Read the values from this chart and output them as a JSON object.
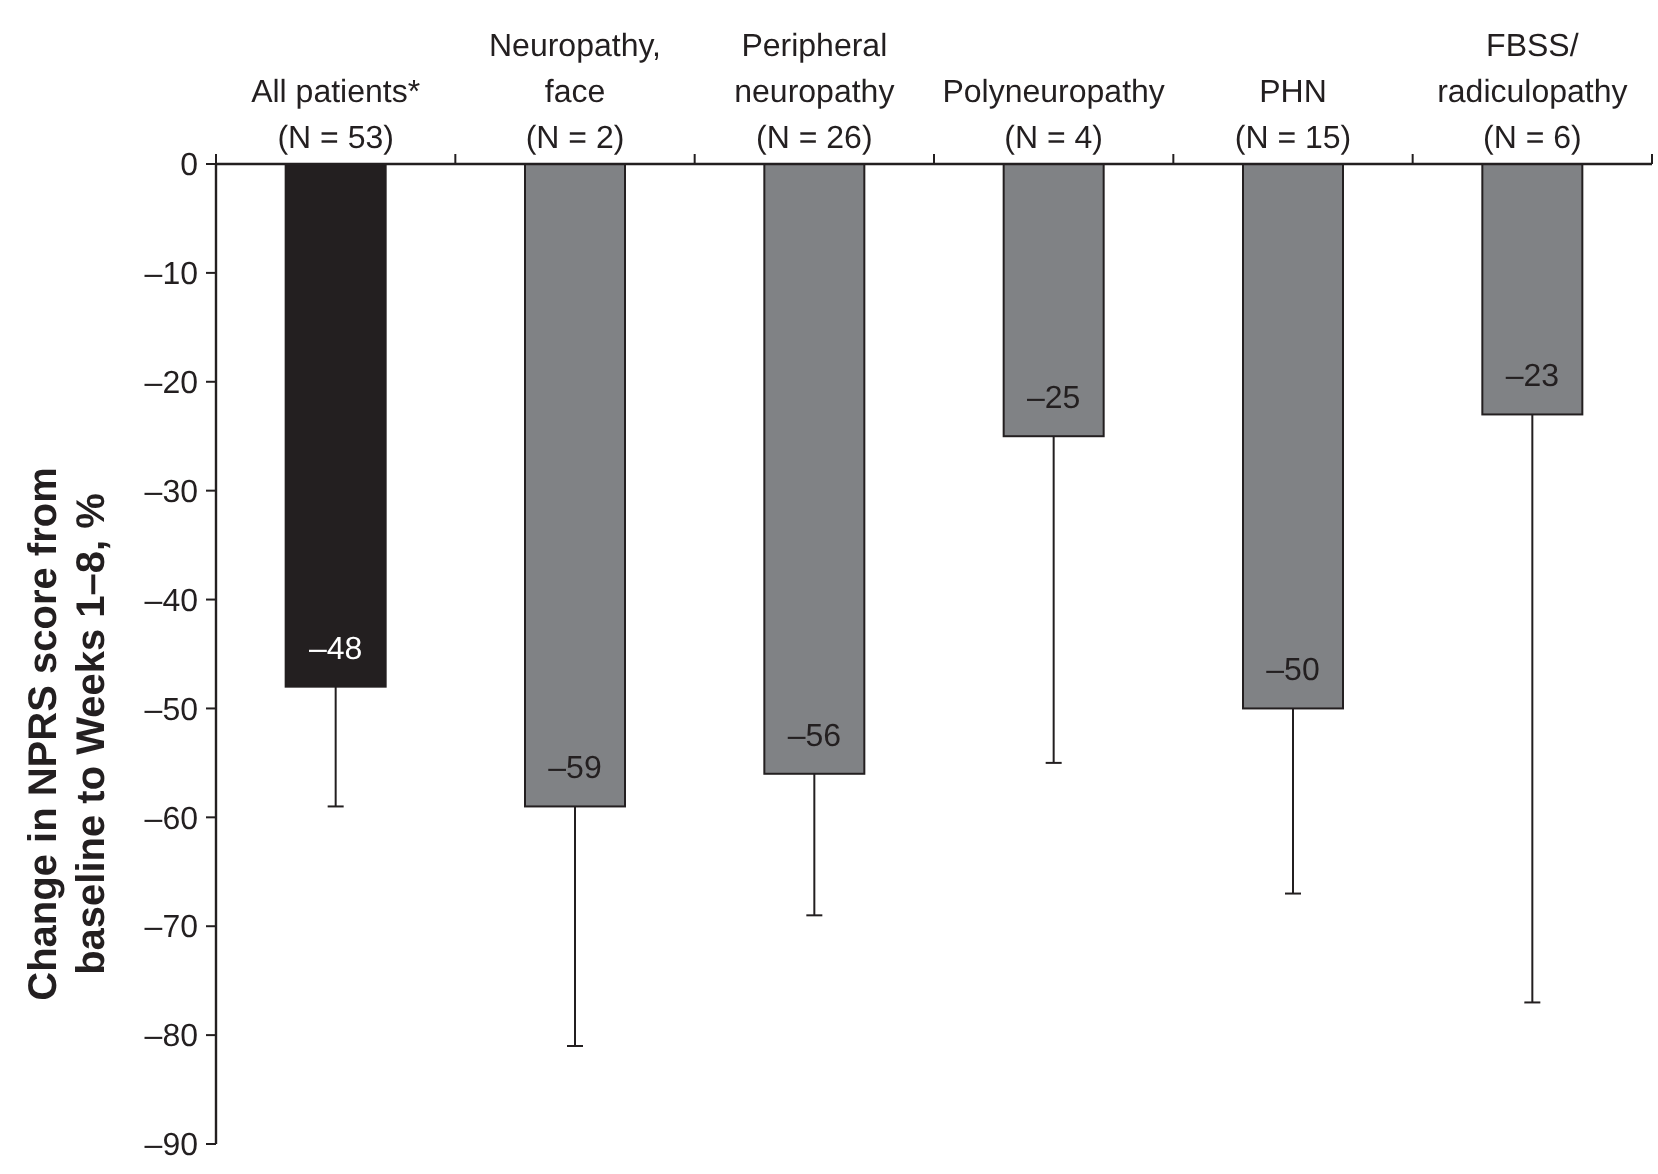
{
  "chart_data": {
    "type": "bar",
    "ylabel": "Change in NPRS score from\nbaseline to Weeks 1–8, %",
    "categories": [
      "All patients*\n(N = 53)",
      "Neuropathy,\nface\n(N = 2)",
      "Peripheral\nneuropathy\n(N = 26)",
      "Polyneuropathy\n(N = 4)",
      "PHN\n(N = 15)",
      "FBSS/\nradiculopathy\n(N = 6)"
    ],
    "values": [
      -48,
      -59,
      -56,
      -25,
      -50,
      -23
    ],
    "value_labels": [
      "–48",
      "–59",
      "–56",
      "–25",
      "–50",
      "–23"
    ],
    "colors": [
      "#231f20",
      "#808285",
      "#808285",
      "#808285",
      "#808285",
      "#808285"
    ],
    "errors": [
      [
        -59,
        -48
      ],
      [
        -81,
        -59
      ],
      [
        -69,
        -56
      ],
      [
        -55,
        -25
      ],
      [
        -67,
        -50
      ],
      [
        -77,
        -23
      ]
    ],
    "ylim": [
      -90,
      0
    ],
    "yticks": [
      0,
      {
        "value": -10,
        "label": "–10"
      },
      {
        "value": -20,
        "label": "–20"
      },
      {
        "value": -30,
        "label": "–30"
      },
      {
        "value": -40,
        "label": "–40"
      },
      {
        "value": -50,
        "label": "–50"
      },
      {
        "value": -60,
        "label": "–60"
      },
      {
        "value": -70,
        "label": "–70"
      },
      {
        "value": -80,
        "label": "–80"
      },
      {
        "value": -90,
        "label": "–90"
      }
    ]
  }
}
